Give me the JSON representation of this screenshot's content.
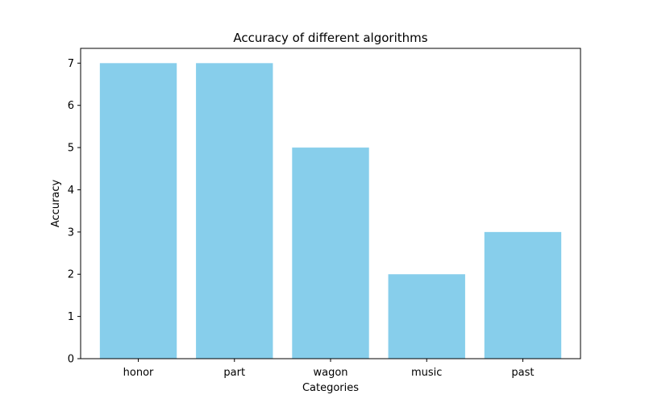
{
  "chart_data": {
    "type": "bar",
    "title": "Accuracy of different algorithms",
    "xlabel": "Categories",
    "ylabel": "Accuracy",
    "categories": [
      "honor",
      "part",
      "wagon",
      "music",
      "past"
    ],
    "values": [
      7,
      7,
      5,
      2,
      3
    ],
    "ylim": [
      0,
      7.35
    ],
    "yticks": [
      0,
      1,
      2,
      3,
      4,
      5,
      6,
      7
    ],
    "grid": false,
    "bar_color": "#87CEEB"
  }
}
